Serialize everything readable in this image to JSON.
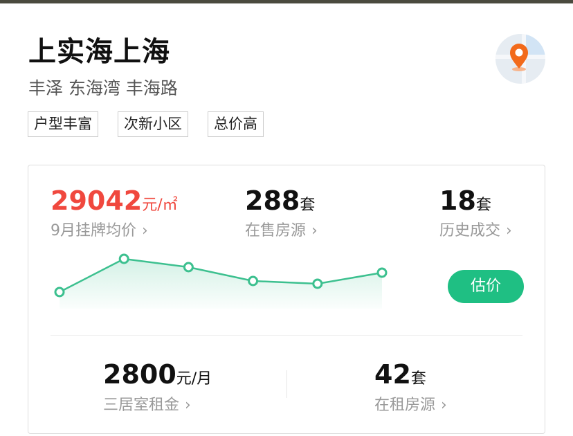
{
  "header": {
    "title": "上实海上海",
    "subtitle": "丰泽 东海湾 丰海路",
    "tags": [
      "户型丰富",
      "次新小区",
      "总价高"
    ],
    "map_icon": "map-pin-icon"
  },
  "stats": {
    "avg_price": {
      "value": "29042",
      "unit": "元/㎡",
      "label": "9月挂牌均价",
      "color": "#f0483e"
    },
    "on_sale": {
      "value": "288",
      "unit": "套",
      "label": "在售房源"
    },
    "history": {
      "value": "18",
      "unit": "套",
      "label": "历史成交"
    },
    "estimate_button": "估价",
    "rent": {
      "value": "2800",
      "unit": "元/月",
      "label": "三居室租金"
    },
    "rentals": {
      "value": "42",
      "unit": "套",
      "label": "在租房源"
    },
    "chevron": "›"
  },
  "chart_data": {
    "type": "area",
    "values": [
      22,
      70,
      58,
      38,
      34,
      50
    ],
    "grid": false,
    "color": "#3cc08f"
  },
  "colors": {
    "accent": "#1fbf83",
    "price": "#f0483e",
    "pin": "#f26a1b"
  }
}
